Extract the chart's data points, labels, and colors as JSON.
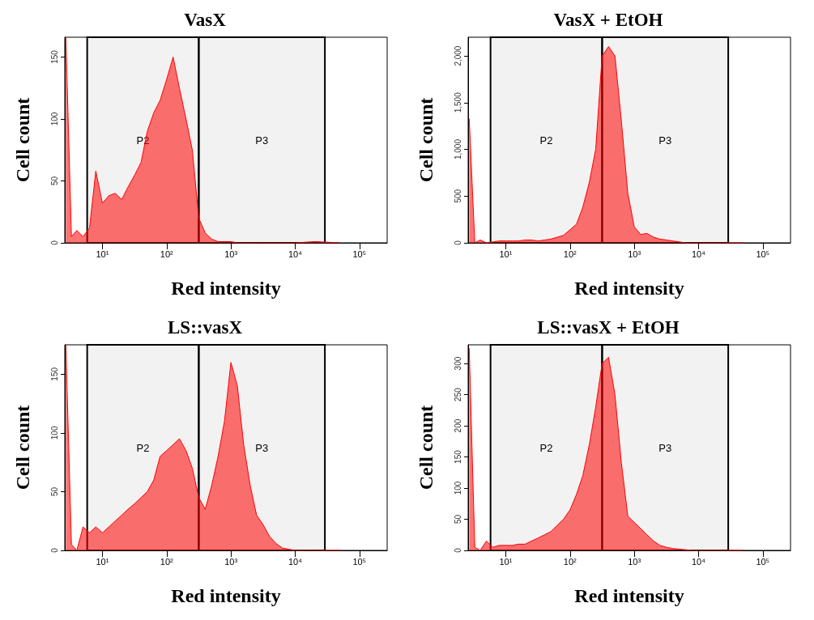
{
  "chart_data": [
    {
      "type": "area",
      "title": "VasX",
      "xlabel": "Red intensity",
      "ylabel": "Cell count",
      "log": "x",
      "color": "#ff0000",
      "x": [
        2.7,
        3.3,
        4,
        5,
        6.3,
        7.9,
        10,
        12.6,
        15.8,
        20,
        25,
        32,
        40,
        50,
        63,
        79,
        100,
        126,
        158,
        200,
        251,
        316,
        398,
        501,
        631,
        794,
        1000,
        1260,
        1580,
        2000,
        2510,
        3160,
        3980,
        5010,
        6310,
        7940,
        10000,
        20000,
        50000
      ],
      "values": [
        166,
        5,
        10,
        5,
        12,
        58,
        32,
        38,
        40,
        35,
        45,
        55,
        65,
        90,
        105,
        115,
        132,
        150,
        125,
        100,
        75,
        20,
        8,
        3,
        1,
        1,
        1,
        0,
        0,
        0,
        0,
        0,
        0,
        0,
        0,
        0,
        0,
        1,
        0
      ],
      "xlim": [
        2.6,
        270000
      ],
      "xticks": [
        {
          "value": 10,
          "label": "10¹"
        },
        {
          "value": 100,
          "label": "10²"
        },
        {
          "value": 1000,
          "label": "10³"
        },
        {
          "value": 10000,
          "label": "10⁴"
        },
        {
          "value": 100000,
          "label": "10⁵"
        }
      ],
      "ylim": [
        0,
        166
      ],
      "yticks": [
        0,
        50,
        100,
        150
      ],
      "bands": [
        {
          "axis": "x",
          "from": 5.8,
          "to": 316,
          "label": "P2",
          "color": "#000000"
        },
        {
          "axis": "x",
          "from": 316,
          "to": 29000,
          "label": "P3",
          "color": "#000000"
        }
      ]
    },
    {
      "type": "area",
      "title": "VasX + EtOH",
      "xlabel": "Red intensity",
      "ylabel": "Cell count",
      "log": "x",
      "color": "#ff0000",
      "x": [
        2.7,
        3.3,
        4,
        5,
        6.3,
        7.9,
        10,
        12.6,
        15.8,
        20,
        25,
        32,
        40,
        50,
        63,
        79,
        100,
        126,
        158,
        200,
        251,
        316,
        398,
        501,
        631,
        794,
        1000,
        1260,
        1580,
        2000,
        2510,
        3160,
        3980,
        5010,
        6310,
        7940,
        10000,
        20000,
        50000
      ],
      "values": [
        1330,
        0,
        30,
        0,
        10,
        20,
        20,
        20,
        20,
        30,
        30,
        20,
        30,
        40,
        60,
        80,
        140,
        200,
        380,
        650,
        1000,
        2000,
        2100,
        2000,
        1300,
        530,
        170,
        90,
        100,
        60,
        40,
        30,
        20,
        10,
        0,
        0,
        0,
        0,
        0
      ],
      "xlim": [
        2.6,
        270000
      ],
      "xticks": [
        {
          "value": 10,
          "label": "10¹"
        },
        {
          "value": 100,
          "label": "10²"
        },
        {
          "value": 1000,
          "label": "10³"
        },
        {
          "value": 10000,
          "label": "10⁴"
        },
        {
          "value": 100000,
          "label": "10⁵"
        }
      ],
      "ylim": [
        0,
        2200
      ],
      "yticks": [
        0,
        500,
        {
          "value": 1000,
          "label": "1,000"
        },
        {
          "value": 1500,
          "label": "1,500"
        },
        {
          "value": 2000,
          "label": "2,000"
        }
      ],
      "bands": [
        {
          "axis": "x",
          "from": 5.8,
          "to": 316,
          "label": "P2",
          "color": "#000000"
        },
        {
          "axis": "x",
          "from": 316,
          "to": 29000,
          "label": "P3",
          "color": "#000000"
        }
      ]
    },
    {
      "type": "area",
      "title": "LS::vasX",
      "xlabel": "Red intensity",
      "ylabel": "Cell count",
      "log": "x",
      "color": "#ff0000",
      "x": [
        2.7,
        3.3,
        4,
        5,
        6.3,
        7.9,
        10,
        12.6,
        15.8,
        20,
        25,
        32,
        40,
        50,
        63,
        79,
        100,
        126,
        158,
        200,
        251,
        316,
        398,
        501,
        631,
        794,
        1000,
        1260,
        1580,
        2000,
        2510,
        3160,
        3980,
        5010,
        6310,
        7940,
        10000,
        20000,
        50000
      ],
      "values": [
        175,
        5,
        0,
        20,
        15,
        20,
        15,
        20,
        25,
        30,
        35,
        40,
        45,
        50,
        60,
        80,
        85,
        90,
        95,
        85,
        70,
        45,
        35,
        55,
        80,
        110,
        160,
        140,
        90,
        55,
        30,
        22,
        12,
        6,
        2,
        1,
        0,
        0,
        0
      ],
      "xlim": [
        2.6,
        270000
      ],
      "xticks": [
        {
          "value": 10,
          "label": "10¹"
        },
        {
          "value": 100,
          "label": "10²"
        },
        {
          "value": 1000,
          "label": "10³"
        },
        {
          "value": 10000,
          "label": "10⁴"
        },
        {
          "value": 100000,
          "label": "10⁵"
        }
      ],
      "ylim": [
        0,
        175
      ],
      "yticks": [
        0,
        50,
        100,
        150
      ],
      "bands": [
        {
          "axis": "x",
          "from": 5.8,
          "to": 316,
          "label": "P2",
          "color": "#000000"
        },
        {
          "axis": "x",
          "from": 316,
          "to": 29000,
          "label": "P3",
          "color": "#000000"
        }
      ]
    },
    {
      "type": "area",
      "title": "LS::vasX + EtOH",
      "xlabel": "Red intensity",
      "ylabel": "Cell count",
      "log": "x",
      "color": "#ff0000",
      "x": [
        2.7,
        3.3,
        4,
        5,
        6.3,
        7.9,
        10,
        12.6,
        15.8,
        20,
        25,
        32,
        40,
        50,
        63,
        79,
        100,
        126,
        158,
        200,
        251,
        316,
        398,
        501,
        631,
        794,
        1000,
        1260,
        1580,
        2000,
        2510,
        3160,
        3980,
        5010,
        6310,
        7940,
        10000,
        20000,
        50000
      ],
      "values": [
        325,
        5,
        0,
        15,
        5,
        8,
        8,
        8,
        10,
        10,
        15,
        20,
        25,
        30,
        40,
        50,
        65,
        90,
        120,
        170,
        230,
        300,
        310,
        250,
        140,
        55,
        45,
        35,
        25,
        15,
        8,
        5,
        3,
        2,
        1,
        0,
        0,
        0,
        0
      ],
      "xlim": [
        2.6,
        270000
      ],
      "xticks": [
        {
          "value": 10,
          "label": "10¹"
        },
        {
          "value": 100,
          "label": "10²"
        },
        {
          "value": 1000,
          "label": "10³"
        },
        {
          "value": 10000,
          "label": "10⁴"
        },
        {
          "value": 100000,
          "label": "10⁵"
        }
      ],
      "ylim": [
        0,
        330
      ],
      "yticks": [
        0,
        50,
        100,
        150,
        200,
        250,
        300
      ],
      "bands": [
        {
          "axis": "x",
          "from": 5.8,
          "to": 316,
          "label": "P2",
          "color": "#000000"
        },
        {
          "axis": "x",
          "from": 316,
          "to": 29000,
          "label": "P3",
          "color": "#000000"
        }
      ]
    }
  ]
}
